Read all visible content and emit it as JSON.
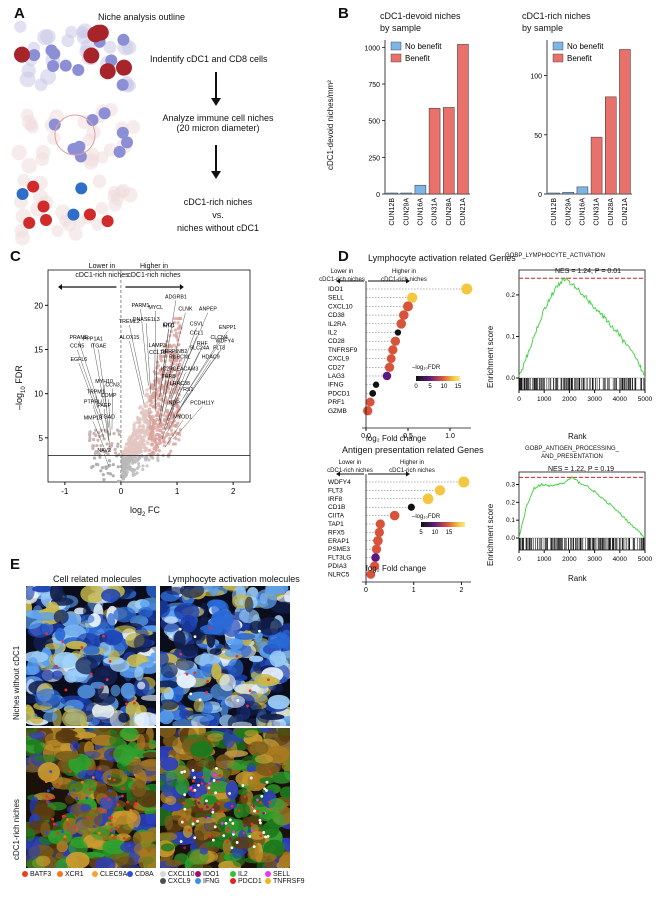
{
  "panel_labels": {
    "a": "A",
    "b": "B",
    "c": "C",
    "d": "D",
    "e": "E"
  },
  "panel_a": {
    "title": "Niche analysis outline",
    "step1": "Indentify cDC1 and CD8 cells",
    "step2_line1": "Analyze immune cell niches",
    "step2_line2": "(20 micron diameter)",
    "step3_line1": "cDC1-rich niches",
    "step3_line2": "vs.",
    "step3_line3": "niches without cDC1"
  },
  "panel_b": {
    "left_title_1": "cDC1-devoid niches",
    "left_title_2": "by sample",
    "right_title_1": "cDC1-rich niches",
    "right_title_2": "by sample",
    "legend_no_benefit": "No benefit",
    "legend_benefit": "Benefit",
    "ylabel": "cDC1-devoid niches/mm²",
    "color_no_benefit": "#7eb4e6",
    "color_benefit": "#e8716c"
  },
  "panel_c": {
    "lower_label_1": "Lower in",
    "lower_label_2": "cDC1-rich niches",
    "higher_label_1": "Higher in",
    "higher_label_2": "cDC1-rich niches",
    "xlabel_base": "log",
    "xlabel_sub": "2",
    "xlabel_rest": " FC",
    "ylabel_prefix": "–log",
    "ylabel_sub": "10",
    "ylabel_rest": " FDR"
  },
  "panel_d": {
    "top_title": "Lymphocyte activation related Genes",
    "bottom_title": "Antigen presentation related Genes",
    "lower_1": "Lower in",
    "lower_2": "cDC1-rich niches",
    "higher_1": "Higher in",
    "higher_2": "cDC1-rich niches",
    "fc_xlabel": "log₂ Fold change",
    "fdr_legend": "–log₁₀FDR",
    "gsea_top_title": "GOBP_LYMPHOCYTE_ACTIVATION",
    "gsea_top_stats": "NES = 1.24, P = 0.01",
    "gsea_bottom_title_1": "GOBP_ANTIGEN_PROCESSING_",
    "gsea_bottom_title_2": "AND_PRESENTATION",
    "gsea_bottom_stats": "NES = 1.22, P = 0.19",
    "gsea_ylabel": "Enrichment score",
    "gsea_xlabel": "Rank"
  },
  "panel_e": {
    "left_title": "Cell related molecules",
    "right_title": "Lymphocyte activation molecules",
    "row1_label": "Niches without cDC1",
    "row2_label": "cDC1-rich niches",
    "legend_left": [
      {
        "name": "BATF3",
        "color": "#e8401c"
      },
      {
        "name": "XCR1",
        "color": "#f07a1a"
      },
      {
        "name": "CLEC9A",
        "color": "#f5a33a"
      },
      {
        "name": "CD8A",
        "color": "#2c4fd8"
      }
    ],
    "legend_right": [
      {
        "name": "CXCL10",
        "color": "#d8d8d8"
      },
      {
        "name": "IDO1",
        "color": "#a0106a"
      },
      {
        "name": "IL2",
        "color": "#2fc42f"
      },
      {
        "name": "SELL",
        "color": "#e83ae8"
      },
      {
        "name": "CXCL9",
        "color": "#505050"
      },
      {
        "name": "IFNG",
        "color": "#3a8ee8"
      },
      {
        "name": "PDCD1",
        "color": "#e82020"
      },
      {
        "name": "TNFRSF9",
        "color": "#f5b31a"
      }
    ]
  },
  "chart_data": [
    {
      "type": "bar",
      "title": "cDC1-devoid niches by sample",
      "ylabel": "cDC1-devoid niches/mm²",
      "ylim": [
        0,
        1050
      ],
      "yticks": [
        0,
        250,
        500,
        750,
        1000
      ],
      "categories": [
        "CUN12B",
        "CUN29A",
        "CUN16A",
        "CUN31A",
        "CUN28A",
        "CUN21A"
      ],
      "values": [
        2,
        3,
        60,
        585,
        590,
        1020
      ],
      "groups": [
        "No benefit",
        "No benefit",
        "No benefit",
        "Benefit",
        "Benefit",
        "Benefit"
      ]
    },
    {
      "type": "bar",
      "title": "cDC1-rich niches by sample",
      "ylim": [
        0,
        130
      ],
      "yticks": [
        0,
        50,
        100
      ],
      "categories": [
        "CUN12B",
        "CUN29A",
        "CUN16A",
        "CUN31A",
        "CUN28A",
        "CUN21A"
      ],
      "values": [
        0.5,
        1.5,
        6,
        48,
        82,
        122
      ],
      "groups": [
        "No benefit",
        "No benefit",
        "No benefit",
        "Benefit",
        "Benefit",
        "Benefit"
      ]
    },
    {
      "type": "scatter",
      "xlim": [
        -1.3,
        2.3
      ],
      "ylim": [
        0,
        24
      ],
      "xticks": [
        -1,
        0,
        1,
        2
      ],
      "yticks": [
        5,
        10,
        15,
        20
      ],
      "threshold_y": 3,
      "labeled_genes": [
        {
          "gene": "PRAME",
          "x": -0.75,
          "y": 16.2
        },
        {
          "gene": "PPP1A1",
          "x": -0.5,
          "y": 16.0
        },
        {
          "gene": "CCN5",
          "x": -0.78,
          "y": 15.2
        },
        {
          "gene": "ITGAE",
          "x": -0.4,
          "y": 15.2
        },
        {
          "gene": "EGFL6",
          "x": -0.75,
          "y": 13.7
        },
        {
          "gene": "MYH10",
          "x": -0.3,
          "y": 11.2
        },
        {
          "gene": "CCN3",
          "x": -0.15,
          "y": 10.8
        },
        {
          "gene": "TRPM1",
          "x": -0.45,
          "y": 10.0
        },
        {
          "gene": "COMP",
          "x": -0.22,
          "y": 9.6
        },
        {
          "gene": "PTPRU",
          "x": -0.5,
          "y": 8.9
        },
        {
          "gene": "PAEP",
          "x": -0.3,
          "y": 8.5
        },
        {
          "gene": "MMP13",
          "x": -0.5,
          "y": 7.1
        },
        {
          "gene": "ITGAD",
          "x": -0.25,
          "y": 7.2
        },
        {
          "gene": "NAV2",
          "x": -0.3,
          "y": 3.4
        },
        {
          "gene": "PARM1",
          "x": 0.35,
          "y": 19.8
        },
        {
          "gene": "MYCL",
          "x": 0.62,
          "y": 19.6
        },
        {
          "gene": "ADGRB1",
          "x": 0.98,
          "y": 20.8
        },
        {
          "gene": "CLNK",
          "x": 1.15,
          "y": 19.4
        },
        {
          "gene": "ANPEP",
          "x": 1.55,
          "y": 19.4
        },
        {
          "gene": "TREML2",
          "x": 0.15,
          "y": 18.0
        },
        {
          "gene": "DNASE1L3",
          "x": 0.45,
          "y": 18.2
        },
        {
          "gene": "IDO1",
          "x": 0.85,
          "y": 17.6
        },
        {
          "gene": "CSVL",
          "x": 1.35,
          "y": 17.7
        },
        {
          "gene": "ENPP1",
          "x": 1.9,
          "y": 17.3
        },
        {
          "gene": "HTC",
          "x": 0.85,
          "y": 17.5
        },
        {
          "gene": "CCL1",
          "x": 1.35,
          "y": 16.7
        },
        {
          "gene": "ALOX15",
          "x": 0.15,
          "y": 16.2
        },
        {
          "gene": "LAMP3",
          "x": 0.65,
          "y": 15.3
        },
        {
          "gene": "CCL19",
          "x": 0.65,
          "y": 14.5
        },
        {
          "gene": "SERPINB2",
          "x": 0.95,
          "y": 14.6
        },
        {
          "gene": "RUBCNL",
          "x": 1.05,
          "y": 14.0
        },
        {
          "gene": "IC2R",
          "x": 0.82,
          "y": 12.6
        },
        {
          "gene": "CEACAM3",
          "x": 1.15,
          "y": 12.6
        },
        {
          "gene": "THRB",
          "x": 0.85,
          "y": 11.8
        },
        {
          "gene": "LRRC38",
          "x": 1.05,
          "y": 11.0
        },
        {
          "gene": "RS1",
          "x": 1.2,
          "y": 10.3
        },
        {
          "gene": "NDP",
          "x": 0.95,
          "y": 8.8
        },
        {
          "gene": "PCDH11Y",
          "x": 1.45,
          "y": 8.8
        },
        {
          "gene": "MYOD1",
          "x": 1.1,
          "y": 7.2
        },
        {
          "gene": "HDAC9",
          "x": 1.6,
          "y": 14.0
        },
        {
          "gene": "FLT3",
          "x": 1.75,
          "y": 15.0
        },
        {
          "gene": "WDFY4",
          "x": 1.85,
          "y": 15.8
        },
        {
          "gene": "CLCN4",
          "x": 1.75,
          "y": 16.2
        },
        {
          "gene": "RHF",
          "x": 1.45,
          "y": 15.5
        },
        {
          "gene": "SLC24A",
          "x": 1.4,
          "y": 15.0
        }
      ]
    },
    {
      "type": "scatter",
      "title": "Lymphocyte activation related Genes",
      "xlabel": "log₂ Fold change",
      "xticks": [
        0.0,
        0.5,
        1.0
      ],
      "genes": [
        "IDO1",
        "SELL",
        "CXCL10",
        "CD38",
        "IL2RA",
        "IL2",
        "CD28",
        "TNFRSF9",
        "CXCL9",
        "CD27",
        "LAG3",
        "IFNG",
        "PDCD1",
        "PRF1",
        "GZMB"
      ],
      "fold_change": [
        1.2,
        0.55,
        0.5,
        0.45,
        0.42,
        0.38,
        0.35,
        0.32,
        0.3,
        0.28,
        0.25,
        0.12,
        0.08,
        0.05,
        0.02
      ],
      "neg_log10_fdr": [
        14,
        12,
        11,
        10,
        10,
        1,
        9,
        9,
        8,
        9,
        7,
        1,
        2,
        8,
        9
      ]
    },
    {
      "type": "scatter",
      "title": "Antigen presentation related Genes",
      "xlabel": "log₂ Fold change",
      "xticks": [
        0,
        1,
        2
      ],
      "genes": [
        "WDFY4",
        "FLT3",
        "IRF8",
        "CD1B",
        "CIITA",
        "TAP1",
        "RFX5",
        "ERAP1",
        "PSME3",
        "FLT3LG",
        "PDIA3",
        "NLRC5"
      ],
      "fold_change": [
        2.05,
        1.55,
        1.3,
        0.95,
        0.6,
        0.3,
        0.28,
        0.25,
        0.22,
        0.2,
        0.18,
        0.1
      ],
      "neg_log10_fdr": [
        14,
        12,
        13,
        3,
        10,
        9,
        9,
        10,
        9,
        7,
        9,
        8
      ]
    },
    {
      "type": "line",
      "title": "GOBP_LYMPHOCYTE_ACTIVATION",
      "xlabel": "Rank",
      "ylabel": "Enrichment score",
      "xlim": [
        0,
        5000
      ],
      "ylim": [
        0,
        0.26
      ],
      "xticks": [
        0,
        1000,
        2000,
        3000,
        4000,
        5000
      ],
      "yticks": [
        0.0,
        0.1,
        0.2
      ],
      "x": [
        0,
        300,
        600,
        900,
        1200,
        1500,
        1800,
        2100,
        2400,
        2700,
        3000,
        3300,
        3600,
        3900,
        4200,
        4500,
        4800,
        5000
      ],
      "y": [
        0.0,
        0.05,
        0.1,
        0.15,
        0.19,
        0.22,
        0.24,
        0.225,
        0.21,
        0.19,
        0.17,
        0.15,
        0.13,
        0.11,
        0.085,
        0.06,
        0.03,
        0.0
      ],
      "max_es": 0.24
    },
    {
      "type": "line",
      "title": "GOBP_ANTIGEN_PROCESSING_AND_PRESENTATION",
      "xlabel": "Rank",
      "ylabel": "Enrichment score",
      "xlim": [
        0,
        5000
      ],
      "ylim": [
        0,
        0.37
      ],
      "xticks": [
        0,
        1000,
        2000,
        3000,
        4000,
        5000
      ],
      "yticks": [
        0.0,
        0.1,
        0.2,
        0.3
      ],
      "x": [
        0,
        300,
        600,
        900,
        1200,
        1500,
        1800,
        2100,
        2400,
        2700,
        3000,
        3300,
        3600,
        3900,
        4200,
        4500,
        4800,
        5000
      ],
      "y": [
        0.0,
        0.18,
        0.28,
        0.3,
        0.29,
        0.3,
        0.31,
        0.34,
        0.31,
        0.29,
        0.26,
        0.22,
        0.19,
        0.15,
        0.11,
        0.07,
        0.03,
        0.0
      ],
      "max_es": 0.34
    }
  ]
}
